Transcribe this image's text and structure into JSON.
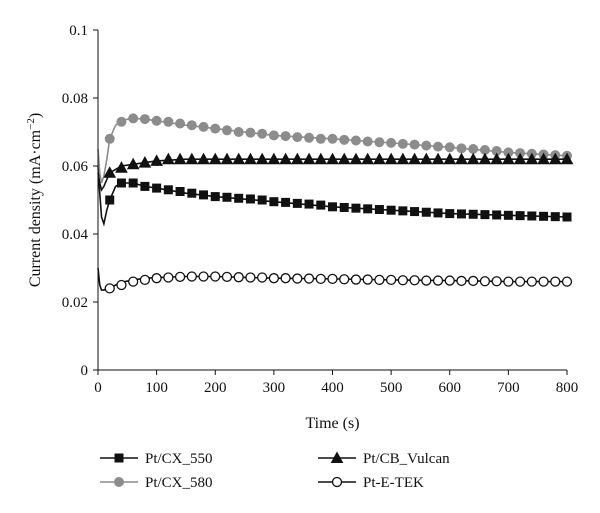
{
  "chart_data": {
    "type": "line",
    "title": "",
    "xlabel": "Time (s)",
    "ylabel_main": "Current density (mA·cm",
    "ylabel_sup": "−2",
    "ylabel_close": ")",
    "xlim": [
      0,
      800
    ],
    "ylim": [
      0,
      0.1
    ],
    "x_ticks": [
      "0",
      "100",
      "200",
      "300",
      "400",
      "500",
      "600",
      "700",
      "800"
    ],
    "y_ticks": [
      "0",
      "0.02",
      "0.04",
      "0.06",
      "0.08",
      "0.1"
    ],
    "x_tick_values": [
      0,
      100,
      200,
      300,
      400,
      500,
      600,
      700,
      800
    ],
    "y_tick_values": [
      0,
      0.02,
      0.04,
      0.06,
      0.08,
      0.1
    ],
    "grid": false,
    "legend_position": "bottom",
    "series": [
      {
        "name": "Pt/CX_550",
        "marker": "square",
        "color": "#111111",
        "fill": "#111111",
        "line": [
          [
            0,
            0.06
          ],
          [
            3,
            0.052
          ],
          [
            6,
            0.045
          ],
          [
            10,
            0.043
          ],
          [
            15,
            0.047
          ],
          [
            20,
            0.05
          ],
          [
            30,
            0.054
          ],
          [
            40,
            0.055
          ],
          [
            60,
            0.055
          ],
          [
            80,
            0.054
          ],
          [
            100,
            0.0535
          ],
          [
            150,
            0.052
          ],
          [
            200,
            0.051
          ],
          [
            300,
            0.0495
          ],
          [
            400,
            0.048
          ],
          [
            500,
            0.047
          ],
          [
            600,
            0.046
          ],
          [
            700,
            0.0455
          ],
          [
            800,
            0.045
          ]
        ],
        "points": [
          [
            20,
            0.05
          ],
          [
            40,
            0.055
          ],
          [
            60,
            0.055
          ],
          [
            80,
            0.054
          ],
          [
            100,
            0.0535
          ],
          [
            120,
            0.053
          ],
          [
            140,
            0.0525
          ],
          [
            160,
            0.052
          ],
          [
            180,
            0.0515
          ],
          [
            200,
            0.051
          ],
          [
            220,
            0.0508
          ],
          [
            240,
            0.0505
          ],
          [
            260,
            0.0503
          ],
          [
            280,
            0.05
          ],
          [
            300,
            0.0495
          ],
          [
            320,
            0.0493
          ],
          [
            340,
            0.049
          ],
          [
            360,
            0.0488
          ],
          [
            380,
            0.0485
          ],
          [
            400,
            0.048
          ],
          [
            420,
            0.0478
          ],
          [
            440,
            0.0476
          ],
          [
            460,
            0.0474
          ],
          [
            480,
            0.0472
          ],
          [
            500,
            0.047
          ],
          [
            520,
            0.0468
          ],
          [
            540,
            0.0466
          ],
          [
            560,
            0.0464
          ],
          [
            580,
            0.0462
          ],
          [
            600,
            0.046
          ],
          [
            620,
            0.0459
          ],
          [
            640,
            0.0458
          ],
          [
            660,
            0.0457
          ],
          [
            680,
            0.0456
          ],
          [
            700,
            0.0455
          ],
          [
            720,
            0.0454
          ],
          [
            740,
            0.0453
          ],
          [
            760,
            0.0452
          ],
          [
            780,
            0.0451
          ],
          [
            800,
            0.045
          ]
        ]
      },
      {
        "name": "Pt/CX_580",
        "marker": "circle",
        "color": "#8c8c8c",
        "fill": "#8c8c8c",
        "line": [
          [
            0,
            0.065
          ],
          [
            3,
            0.058
          ],
          [
            6,
            0.055
          ],
          [
            10,
            0.057
          ],
          [
            15,
            0.062
          ],
          [
            20,
            0.068
          ],
          [
            30,
            0.072
          ],
          [
            40,
            0.0735
          ],
          [
            60,
            0.074
          ],
          [
            80,
            0.0738
          ],
          [
            100,
            0.0733
          ],
          [
            150,
            0.072
          ],
          [
            200,
            0.071
          ],
          [
            300,
            0.069
          ],
          [
            400,
            0.068
          ],
          [
            500,
            0.0668
          ],
          [
            600,
            0.0655
          ],
          [
            700,
            0.064
          ],
          [
            800,
            0.063
          ]
        ],
        "points": [
          [
            20,
            0.068
          ],
          [
            40,
            0.073
          ],
          [
            60,
            0.074
          ],
          [
            80,
            0.0738
          ],
          [
            100,
            0.0733
          ],
          [
            120,
            0.073
          ],
          [
            140,
            0.0725
          ],
          [
            160,
            0.072
          ],
          [
            180,
            0.0715
          ],
          [
            200,
            0.071
          ],
          [
            220,
            0.0705
          ],
          [
            240,
            0.07
          ],
          [
            260,
            0.0698
          ],
          [
            280,
            0.0695
          ],
          [
            300,
            0.069
          ],
          [
            320,
            0.0688
          ],
          [
            340,
            0.0685
          ],
          [
            360,
            0.0683
          ],
          [
            380,
            0.068
          ],
          [
            400,
            0.068
          ],
          [
            420,
            0.0677
          ],
          [
            440,
            0.0675
          ],
          [
            460,
            0.0672
          ],
          [
            480,
            0.067
          ],
          [
            500,
            0.0668
          ],
          [
            520,
            0.0665
          ],
          [
            540,
            0.0663
          ],
          [
            560,
            0.066
          ],
          [
            580,
            0.0657
          ],
          [
            600,
            0.0655
          ],
          [
            620,
            0.0652
          ],
          [
            640,
            0.065
          ],
          [
            660,
            0.0647
          ],
          [
            680,
            0.0644
          ],
          [
            700,
            0.064
          ],
          [
            720,
            0.0638
          ],
          [
            740,
            0.0636
          ],
          [
            760,
            0.0634
          ],
          [
            780,
            0.0632
          ],
          [
            800,
            0.063
          ]
        ]
      },
      {
        "name": "Pt/CB_Vulcan",
        "marker": "triangle",
        "color": "#111111",
        "fill": "#111111",
        "line": [
          [
            0,
            0.058
          ],
          [
            3,
            0.055
          ],
          [
            6,
            0.053
          ],
          [
            10,
            0.054
          ],
          [
            15,
            0.056
          ],
          [
            20,
            0.058
          ],
          [
            30,
            0.059
          ],
          [
            40,
            0.06
          ],
          [
            60,
            0.0605
          ],
          [
            80,
            0.061
          ],
          [
            100,
            0.0615
          ],
          [
            150,
            0.062
          ],
          [
            200,
            0.062
          ],
          [
            300,
            0.062
          ],
          [
            400,
            0.062
          ],
          [
            500,
            0.062
          ],
          [
            600,
            0.062
          ],
          [
            700,
            0.062
          ],
          [
            800,
            0.062
          ]
        ],
        "points": [
          [
            20,
            0.058
          ],
          [
            40,
            0.0595
          ],
          [
            60,
            0.0605
          ],
          [
            80,
            0.061
          ],
          [
            100,
            0.0615
          ],
          [
            120,
            0.062
          ],
          [
            140,
            0.062
          ],
          [
            160,
            0.062
          ],
          [
            180,
            0.062
          ],
          [
            200,
            0.062
          ],
          [
            220,
            0.062
          ],
          [
            240,
            0.062
          ],
          [
            260,
            0.062
          ],
          [
            280,
            0.062
          ],
          [
            300,
            0.062
          ],
          [
            320,
            0.062
          ],
          [
            340,
            0.062
          ],
          [
            360,
            0.062
          ],
          [
            380,
            0.062
          ],
          [
            400,
            0.062
          ],
          [
            420,
            0.062
          ],
          [
            440,
            0.062
          ],
          [
            460,
            0.062
          ],
          [
            480,
            0.062
          ],
          [
            500,
            0.062
          ],
          [
            520,
            0.062
          ],
          [
            540,
            0.062
          ],
          [
            560,
            0.062
          ],
          [
            580,
            0.062
          ],
          [
            600,
            0.062
          ],
          [
            620,
            0.062
          ],
          [
            640,
            0.062
          ],
          [
            660,
            0.062
          ],
          [
            680,
            0.062
          ],
          [
            700,
            0.062
          ],
          [
            720,
            0.062
          ],
          [
            740,
            0.062
          ],
          [
            760,
            0.062
          ],
          [
            780,
            0.062
          ],
          [
            800,
            0.062
          ]
        ]
      },
      {
        "name": "Pt-E-TEK",
        "marker": "open-circle",
        "color": "#111111",
        "fill": "#ffffff",
        "line": [
          [
            0,
            0.03
          ],
          [
            3,
            0.025
          ],
          [
            6,
            0.0235
          ],
          [
            10,
            0.0235
          ],
          [
            15,
            0.024
          ],
          [
            20,
            0.024
          ],
          [
            30,
            0.025
          ],
          [
            40,
            0.0258
          ],
          [
            60,
            0.0265
          ],
          [
            80,
            0.027
          ],
          [
            100,
            0.0272
          ],
          [
            150,
            0.0275
          ],
          [
            200,
            0.0275
          ],
          [
            300,
            0.027
          ],
          [
            400,
            0.0268
          ],
          [
            500,
            0.0265
          ],
          [
            600,
            0.0263
          ],
          [
            700,
            0.026
          ],
          [
            800,
            0.026
          ]
        ],
        "points": [
          [
            20,
            0.024
          ],
          [
            40,
            0.025
          ],
          [
            60,
            0.026
          ],
          [
            80,
            0.0265
          ],
          [
            100,
            0.027
          ],
          [
            120,
            0.0272
          ],
          [
            140,
            0.0274
          ],
          [
            160,
            0.0275
          ],
          [
            180,
            0.0275
          ],
          [
            200,
            0.0275
          ],
          [
            220,
            0.0274
          ],
          [
            240,
            0.0273
          ],
          [
            260,
            0.0272
          ],
          [
            280,
            0.0272
          ],
          [
            300,
            0.027
          ],
          [
            320,
            0.027
          ],
          [
            340,
            0.0269
          ],
          [
            360,
            0.0269
          ],
          [
            380,
            0.0268
          ],
          [
            400,
            0.0268
          ],
          [
            420,
            0.0267
          ],
          [
            440,
            0.0266
          ],
          [
            460,
            0.0266
          ],
          [
            480,
            0.0265
          ],
          [
            500,
            0.0265
          ],
          [
            520,
            0.0264
          ],
          [
            540,
            0.0264
          ],
          [
            560,
            0.0263
          ],
          [
            580,
            0.0263
          ],
          [
            600,
            0.0263
          ],
          [
            620,
            0.0262
          ],
          [
            640,
            0.0262
          ],
          [
            660,
            0.0261
          ],
          [
            680,
            0.0261
          ],
          [
            700,
            0.026
          ],
          [
            720,
            0.026
          ],
          [
            740,
            0.026
          ],
          [
            760,
            0.026
          ],
          [
            780,
            0.026
          ],
          [
            800,
            0.026
          ]
        ]
      }
    ]
  }
}
